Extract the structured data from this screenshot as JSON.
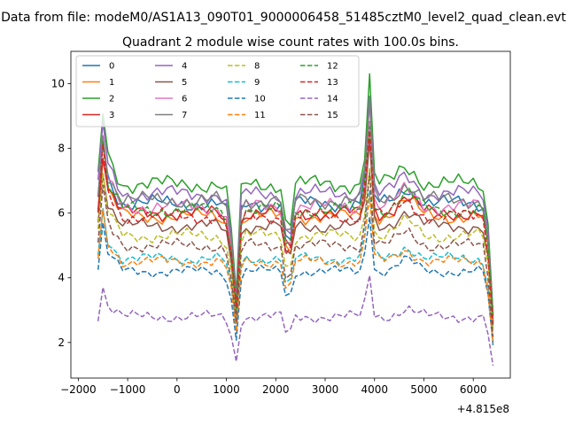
{
  "figure": {
    "suptitle": "Data from file: modeM0/AS1A13_090T01_9000006458_51485cztM0_level2_quad_clean.evt"
  },
  "chart_data": {
    "type": "line",
    "title": "Quadrant 2 module wise count rates with 100.0s bins.",
    "xlabel": "",
    "ylabel": "",
    "x_offset_label": "+4.815e8",
    "xlim": [
      -2150,
      6750
    ],
    "ylim": [
      0.9,
      11.0
    ],
    "x_ticks": [
      -2000,
      -1000,
      0,
      1000,
      2000,
      3000,
      4000,
      5000,
      6000,
      7000
    ],
    "x_tick_labels": [
      "−2000",
      "−1000",
      "0",
      "1000",
      "2000",
      "3000",
      "4000",
      "5000",
      "6000"
    ],
    "y_ticks": [
      2,
      4,
      6,
      8,
      10
    ],
    "y_tick_labels": [
      "2",
      "4",
      "6",
      "8",
      "10"
    ],
    "grid": false,
    "legend_position": "upper-left",
    "legend_columns": 4,
    "x": [
      -1600,
      -1500,
      -1400,
      -1300,
      -1200,
      -1100,
      -1000,
      -900,
      -800,
      -700,
      -600,
      -500,
      -400,
      -300,
      -200,
      -100,
      0,
      100,
      200,
      300,
      400,
      500,
      600,
      700,
      800,
      900,
      1000,
      1100,
      1200,
      1300,
      1400,
      1500,
      1600,
      1700,
      1800,
      1900,
      2000,
      2100,
      2200,
      2300,
      2400,
      2500,
      2600,
      2700,
      2800,
      2900,
      3000,
      3100,
      3200,
      3300,
      3400,
      3500,
      3600,
      3700,
      3800,
      3900,
      4000,
      4100,
      4200,
      4300,
      4400,
      4500,
      4600,
      4700,
      4800,
      4900,
      5000,
      5100,
      5200,
      5300,
      5400,
      5500,
      5600,
      5700,
      5800,
      5900,
      6000,
      6100,
      6200,
      6300,
      6400
    ],
    "series": [
      {
        "name": "0",
        "color": "#1f77b4",
        "dashed": false,
        "base": 6.3
      },
      {
        "name": "1",
        "color": "#ff7f0e",
        "dashed": false,
        "base": 5.9
      },
      {
        "name": "2",
        "color": "#2ca02c",
        "dashed": false,
        "base": 6.9
      },
      {
        "name": "3",
        "color": "#d62728",
        "dashed": false,
        "base": 6.0
      },
      {
        "name": "4",
        "color": "#9467bd",
        "dashed": false,
        "base": 6.6
      },
      {
        "name": "5",
        "color": "#8c564b",
        "dashed": false,
        "base": 5.6
      },
      {
        "name": "6",
        "color": "#e377c2",
        "dashed": false,
        "base": 6.2
      },
      {
        "name": "7",
        "color": "#7f7f7f",
        "dashed": false,
        "base": 6.4
      },
      {
        "name": "8",
        "color": "#bcbd22",
        "dashed": true,
        "base": 5.3
      },
      {
        "name": "9",
        "color": "#17becf",
        "dashed": true,
        "base": 4.6
      },
      {
        "name": "10",
        "color": "#1f77b4",
        "dashed": true,
        "base": 4.2
      },
      {
        "name": "11",
        "color": "#ff7f0e",
        "dashed": true,
        "base": 4.5
      },
      {
        "name": "12",
        "color": "#2ca02c",
        "dashed": true,
        "base": 6.1
      },
      {
        "name": "13",
        "color": "#d62728",
        "dashed": true,
        "base": 5.9
      },
      {
        "name": "14",
        "color": "#9467bd",
        "dashed": true,
        "base": 2.8
      },
      {
        "name": "15",
        "color": "#8c564b",
        "dashed": true,
        "base": 5.0
      }
    ]
  }
}
